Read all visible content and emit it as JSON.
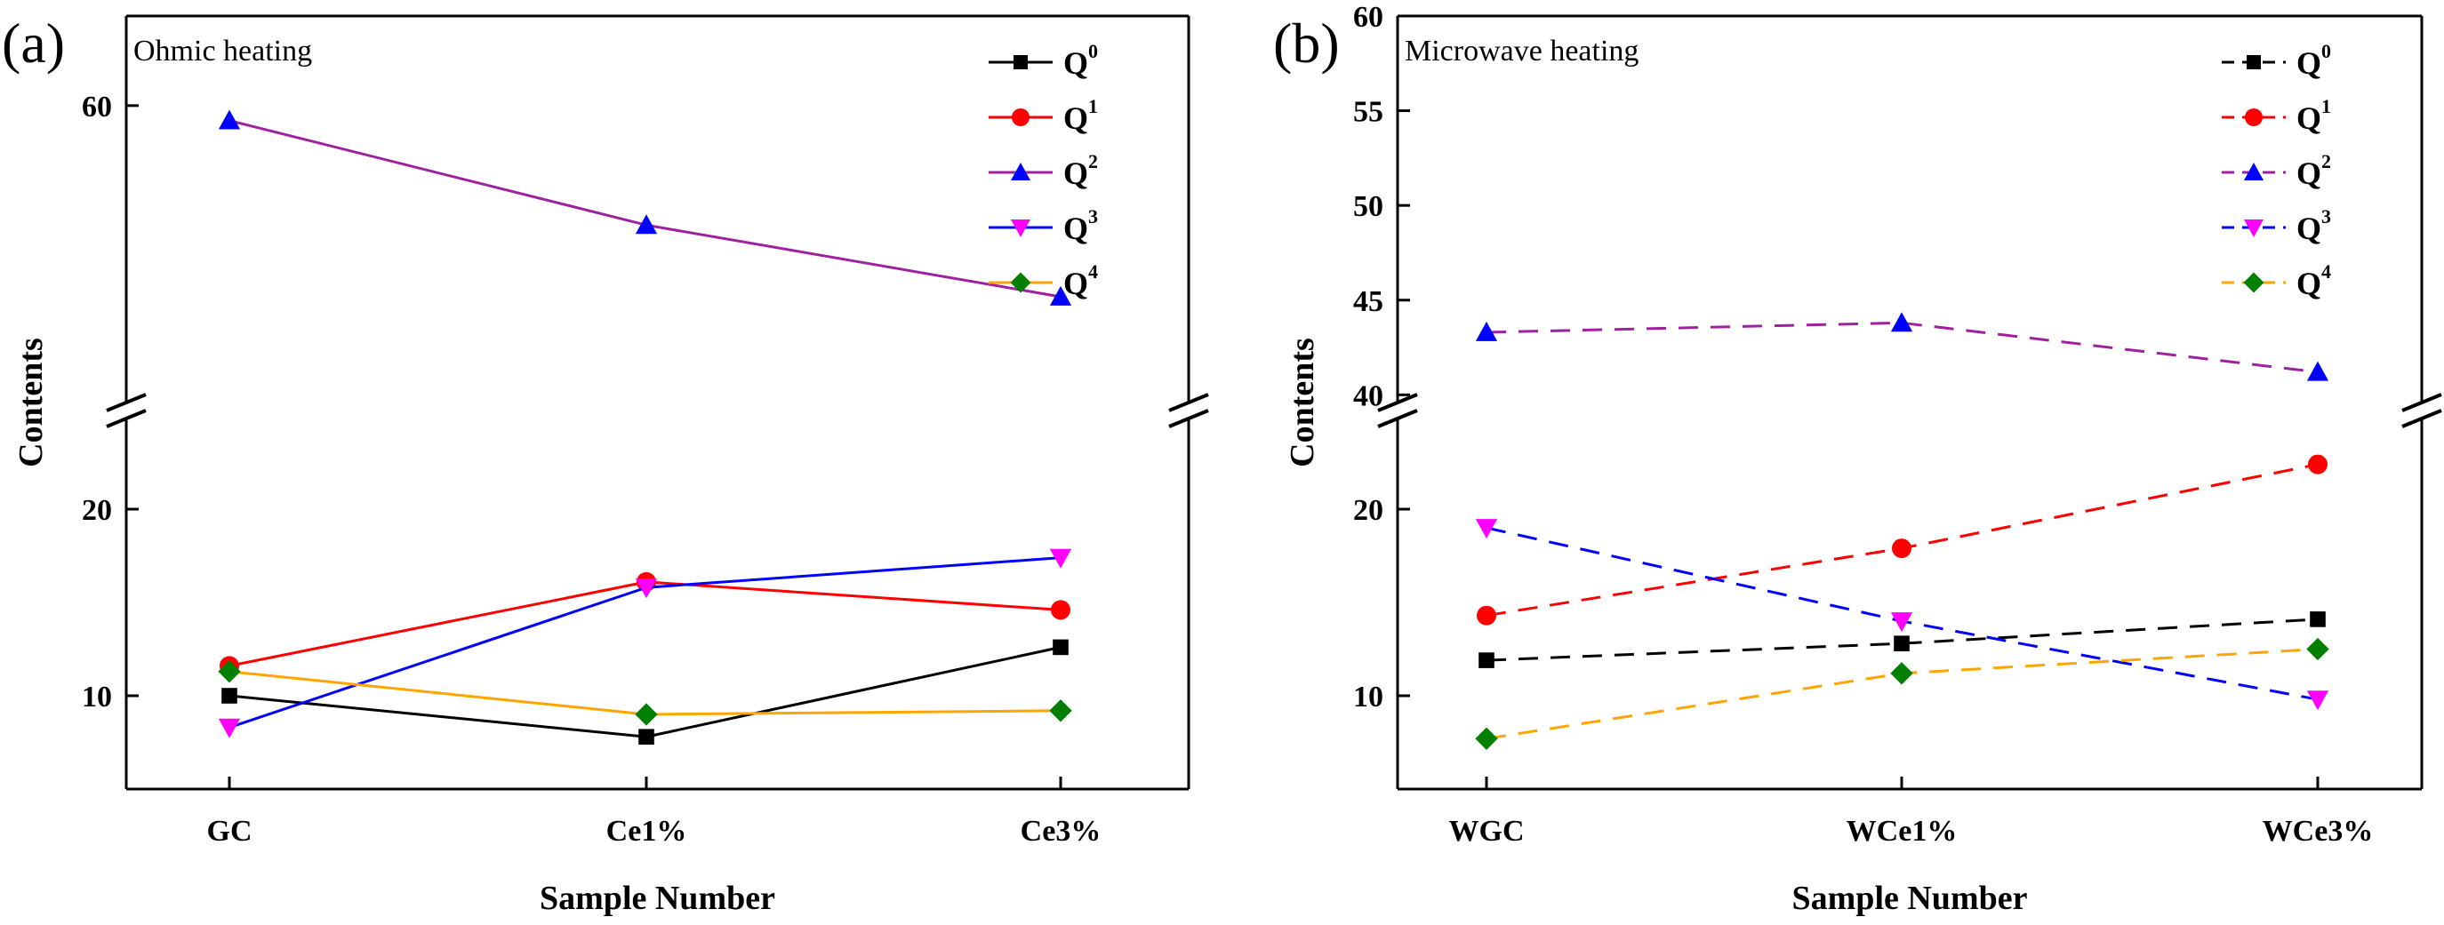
{
  "chart_data": [
    {
      "panel_label": "(a)",
      "type": "line",
      "title": "Ohmic heating",
      "xlabel": "Sample Number",
      "ylabel": "Contents",
      "categories": [
        "GC",
        "Ce1%",
        "Ce3%"
      ],
      "line_style": "solid",
      "axis_break": true,
      "lower_ylim": [
        5,
        25
      ],
      "lower_yticks": [
        10,
        20
      ],
      "upper_ylim": [
        40,
        66
      ],
      "upper_yticks": [
        60
      ],
      "legend_placement": "top-right",
      "series": [
        {
          "name": "Q",
          "sup": "0",
          "color": "#000000",
          "marker": "square",
          "values": [
            10.0,
            7.8,
            12.6
          ]
        },
        {
          "name": "Q",
          "sup": "1",
          "color": "#ff0000",
          "marker": "circle",
          "values": [
            11.6,
            16.1,
            14.6
          ]
        },
        {
          "name": "Q",
          "sup": "2",
          "color": "#a020a0",
          "marker": "triangle-up",
          "marker_color": "#0000ff",
          "values": [
            59.0,
            52.0,
            47.2
          ]
        },
        {
          "name": "Q",
          "sup": "3",
          "color": "#0000ff",
          "marker": "triangle-down",
          "marker_color": "#ff00ff",
          "values": [
            8.3,
            15.8,
            17.4
          ]
        },
        {
          "name": "Q",
          "sup": "4",
          "color": "#ffa500",
          "marker": "diamond",
          "marker_color": "#008000",
          "values": [
            11.3,
            9.0,
            9.2
          ]
        }
      ]
    },
    {
      "panel_label": "(b)",
      "type": "line",
      "title": "Microwave heating",
      "xlabel": "Sample Number",
      "ylabel": "Contents",
      "categories": [
        "WGC",
        "WCe1%",
        "WCe3%"
      ],
      "line_style": "dashed",
      "axis_break": true,
      "lower_ylim": [
        5,
        25
      ],
      "lower_yticks": [
        10,
        20
      ],
      "upper_ylim": [
        39.5,
        60
      ],
      "upper_yticks": [
        40,
        45,
        50,
        55,
        60
      ],
      "legend_placement": "top-right",
      "series": [
        {
          "name": "Q",
          "sup": "0",
          "color": "#000000",
          "marker": "square",
          "values": [
            11.9,
            12.8,
            14.1
          ]
        },
        {
          "name": "Q",
          "sup": "1",
          "color": "#ff0000",
          "marker": "circle",
          "values": [
            14.3,
            17.9,
            22.4
          ]
        },
        {
          "name": "Q",
          "sup": "2",
          "color": "#a020a0",
          "marker": "triangle-up",
          "marker_color": "#0000ff",
          "values": [
            43.3,
            43.8,
            41.2
          ]
        },
        {
          "name": "Q",
          "sup": "3",
          "color": "#0000ff",
          "marker": "triangle-down",
          "marker_color": "#ff00ff",
          "values": [
            19.0,
            14.0,
            9.8
          ]
        },
        {
          "name": "Q",
          "sup": "4",
          "color": "#ffa500",
          "marker": "diamond",
          "marker_color": "#008000",
          "values": [
            7.7,
            11.2,
            12.5
          ]
        }
      ]
    }
  ]
}
